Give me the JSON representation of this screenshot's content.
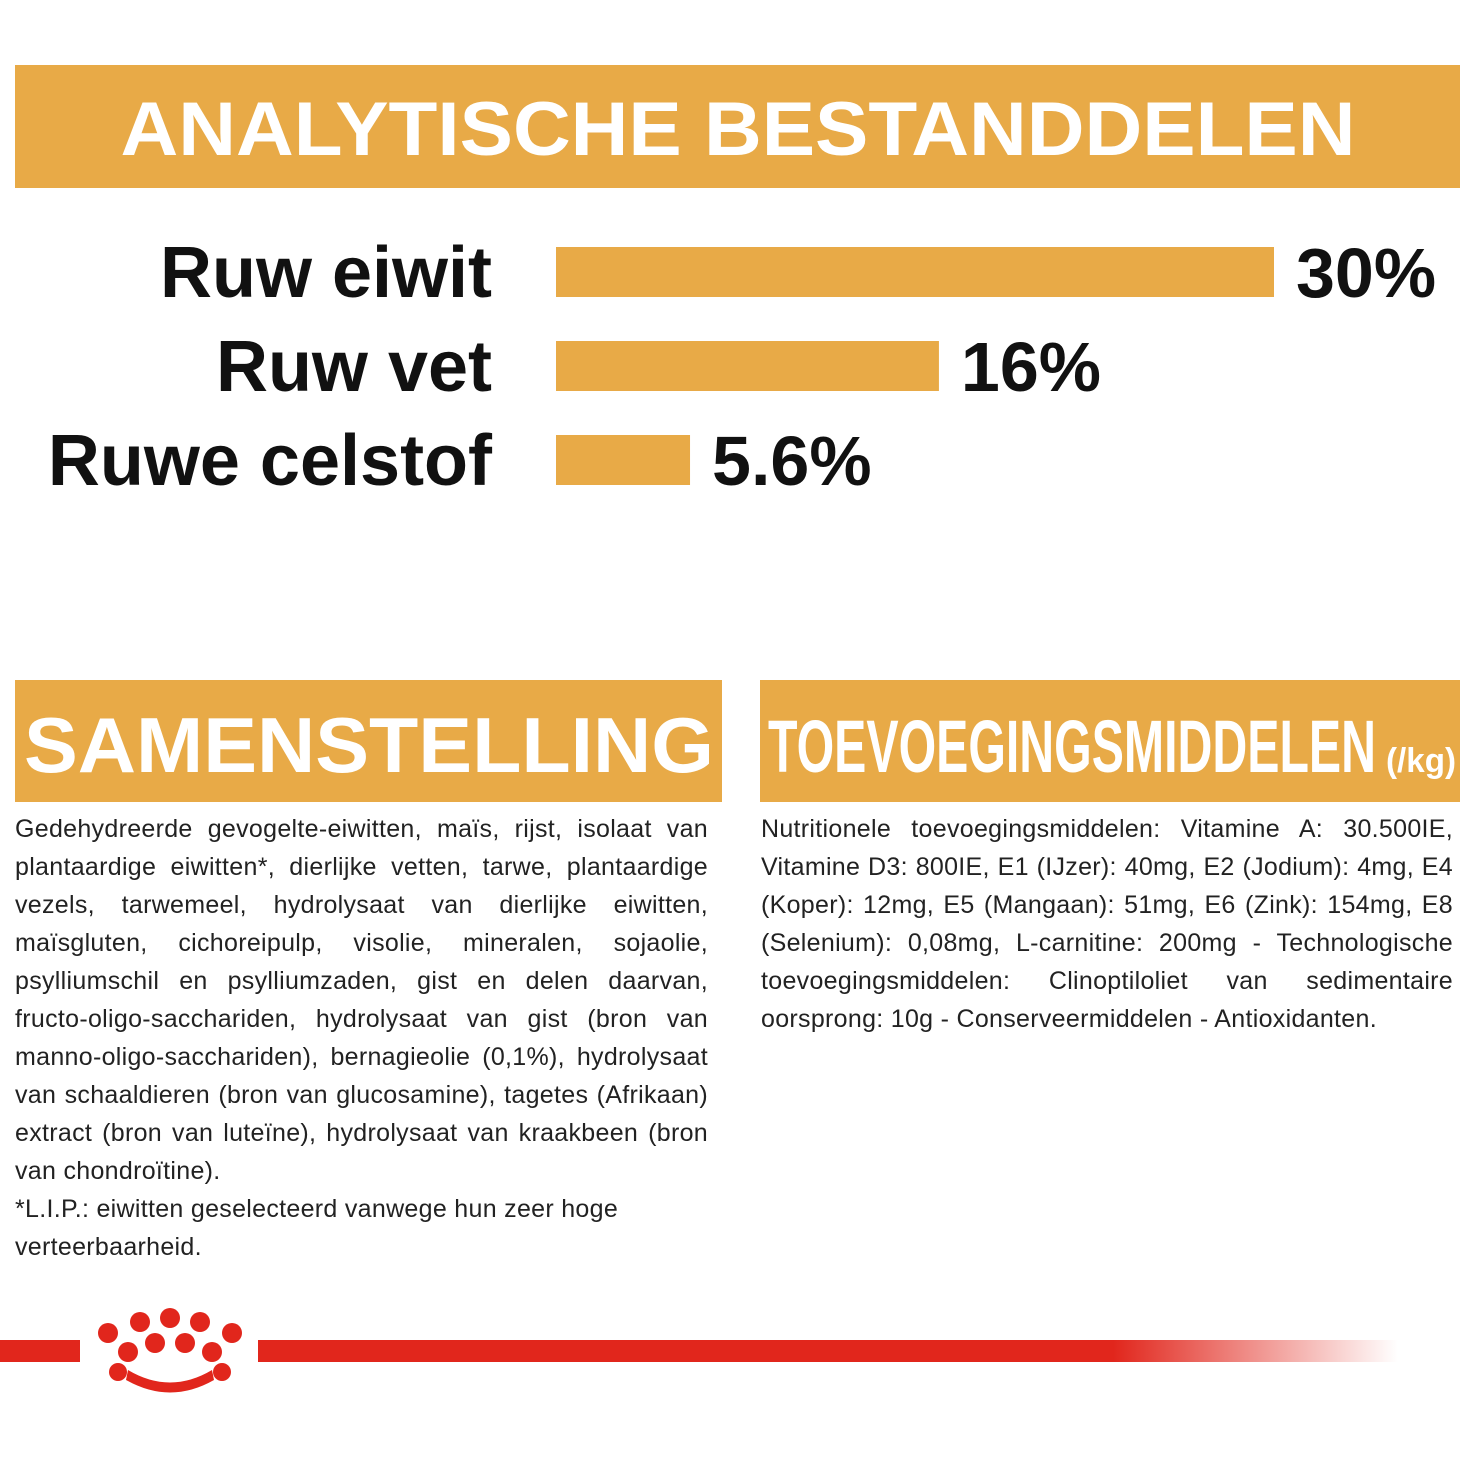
{
  "chart_data": {
    "type": "bar",
    "orientation": "horizontal",
    "title": "ANALYTISCHE BESTANDDELEN",
    "categories": [
      "Ruw eiwit",
      "Ruw vet",
      "Ruwe celstof"
    ],
    "values": [
      30,
      16,
      5.6
    ],
    "value_labels": [
      "30%",
      "16%",
      "5.6%"
    ],
    "color": "#e8aa47"
  },
  "composition": {
    "title": "SAMENSTELLING",
    "text": "Gedehydreerde gevogelte-eiwitten, maïs, rijst, isolaat van plantaardige eiwitten*, dierlijke vetten, tarwe, plantaardige vezels, tarwemeel, hydrolysaat van dierlijke eiwitten, maïsgluten, cichoreipulp, visolie, mineralen, sojaolie, psylliumschil en psylliumzaden, gist en delen daarvan, fructo-oligo-sacchariden, hydrolysaat van gist (bron van manno-oligo-sacchariden), bernagieolie (0,1%), hydrolysaat van schaaldieren (bron van glucosamine), tagetes (Afrikaan) extract (bron van luteïne), hydrolysaat van kraakbeen (bron van chondroïtine).",
    "footnote": "*L.I.P.: eiwitten geselecteerd vanwege hun zeer hoge verteerbaarheid."
  },
  "additives": {
    "title": "TOEVOEGINGSMIDDELEN",
    "unit": "(/kg)",
    "text": "Nutritionele toevoegingsmiddelen: Vitamine A: 30.500IE, Vitamine D3: 800IE, E1 (IJzer): 40mg, E2 (Jodium): 4mg, E4 (Koper): 12mg, E5 (Mangaan): 51mg, E6 (Zink): 154mg, E8 (Selenium): 0,08mg, L-carnitine: 200mg - Technologische toevoegingsmiddelen: Clinoptiloliet van sedimentaire oorsprong: 10g - Conserveermiddelen - Antioxidanten."
  }
}
